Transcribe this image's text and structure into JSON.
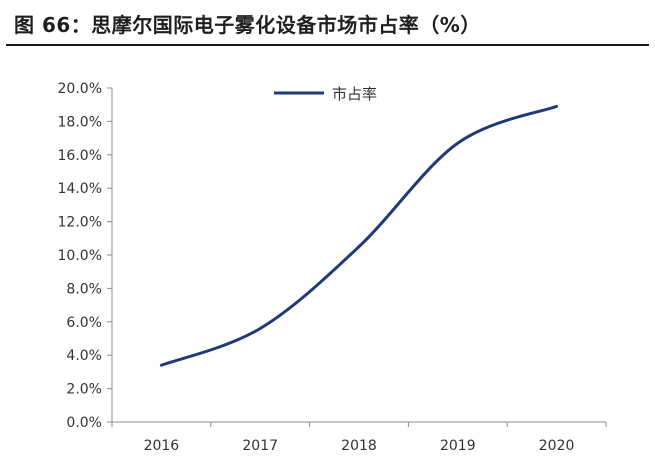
{
  "figure": {
    "title": "图 66：思摩尔国际电子雾化设备市场市占率（%）"
  },
  "chart_data": {
    "type": "line",
    "title": "",
    "xlabel": "",
    "ylabel": "",
    "categories": [
      "2016",
      "2017",
      "2018",
      "2019",
      "2020"
    ],
    "series": [
      {
        "name": "市占率",
        "values": [
          3.4,
          5.6,
          10.5,
          16.7,
          18.9
        ],
        "color": "#1f3a78"
      }
    ],
    "ylim": [
      0,
      20
    ],
    "yticks": [
      "0.0%",
      "2.0%",
      "4.0%",
      "6.0%",
      "8.0%",
      "10.0%",
      "12.0%",
      "14.0%",
      "16.0%",
      "18.0%",
      "20.0%"
    ],
    "legend": {
      "position": "top-center"
    },
    "grid": false
  }
}
